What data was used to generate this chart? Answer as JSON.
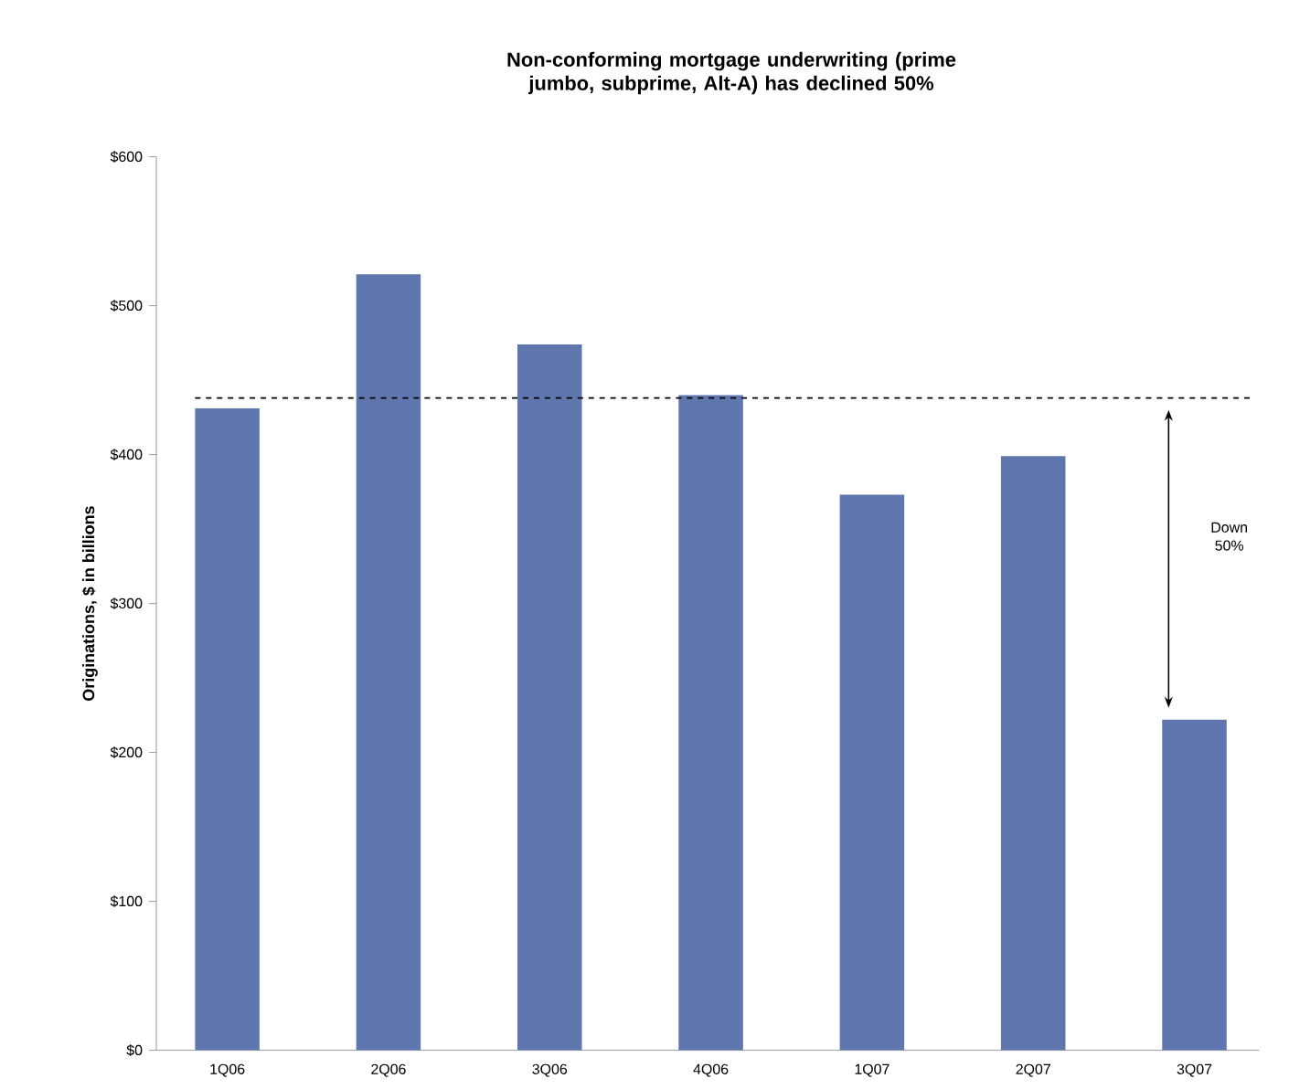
{
  "chart_data": {
    "type": "bar",
    "title": "Non-conforming mortgage underwriting (prime jumbo, subprime, Alt-A) has declined 50%",
    "ylabel": "Originations, $ in billions",
    "categories": [
      "1Q06",
      "2Q06",
      "3Q06",
      "4Q06",
      "1Q07",
      "2Q07",
      "3Q07"
    ],
    "values": [
      431,
      521,
      474,
      440,
      373,
      399,
      222
    ],
    "color": "#5f77ae",
    "ylim": [
      0,
      600
    ],
    "yticks": [
      {
        "value": 0,
        "label": "$0"
      },
      {
        "value": 100,
        "label": "$100"
      },
      {
        "value": 200,
        "label": "$200"
      },
      {
        "value": 300,
        "label": "$300"
      },
      {
        "value": 400,
        "label": "$400"
      },
      {
        "value": 500,
        "label": "$500"
      },
      {
        "value": 600,
        "label": "$600"
      }
    ],
    "ref_lines": [
      {
        "axis": "y",
        "value": 438,
        "line_style": "dashed"
      }
    ],
    "annotations": [
      "Down 50%"
    ],
    "grid": false
  }
}
